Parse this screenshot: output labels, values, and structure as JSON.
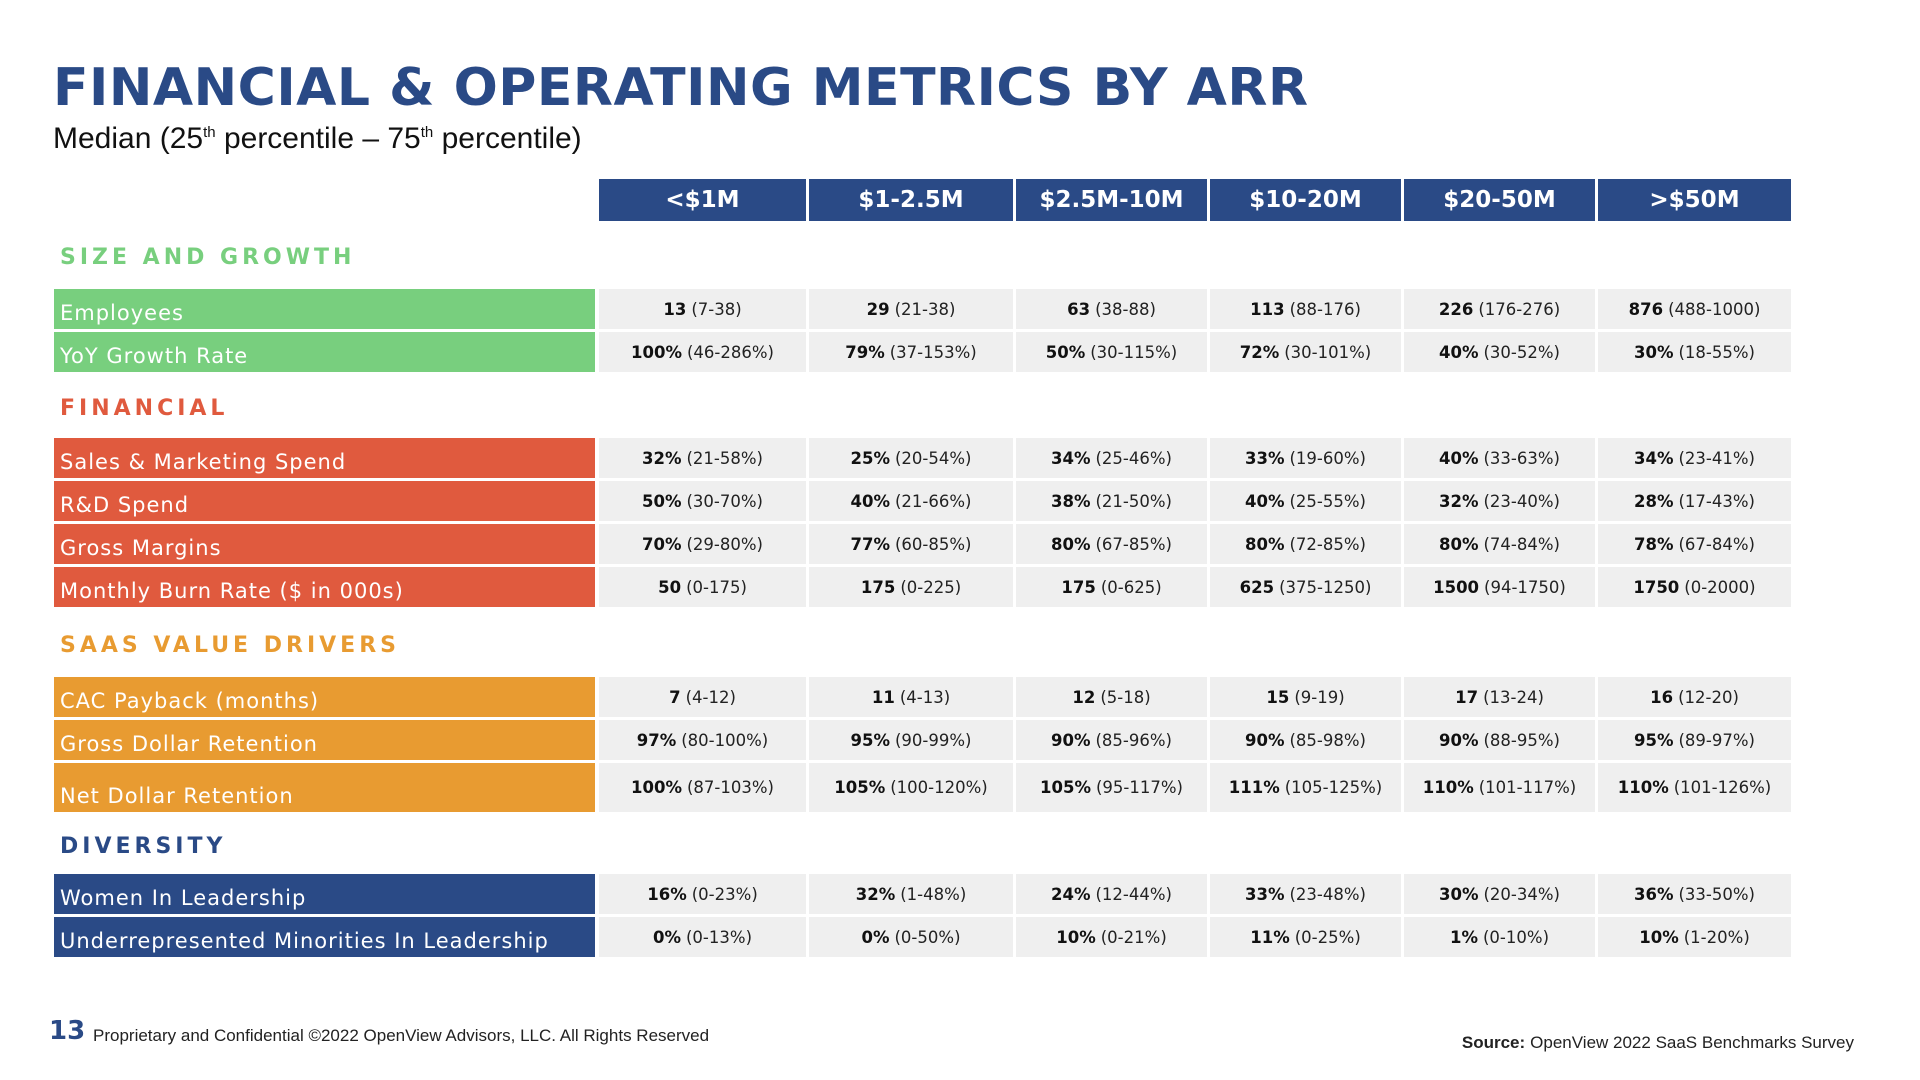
{
  "title": "FINANCIAL & OPERATING METRICS BY ARR",
  "subtitle": {
    "pre": "Median (25",
    "sup1": "th",
    "mid": " percentile – 75",
    "sup2": "th",
    "post": " percentile)"
  },
  "columns": [
    "<$1M",
    "$1-2.5M",
    "$2.5M-10M",
    "$10-20M",
    "$20-50M",
    ">$50M"
  ],
  "colors": {
    "header_blue": "#2a4a86",
    "size_green": "#78cf7e",
    "financial_red": "#e05a3e",
    "saas_orange": "#e89b31",
    "diversity_blue": "#2a4a86",
    "cell_gray": "#efefef"
  },
  "sections": [
    {
      "title": "SIZE AND GROWTH",
      "rows": [
        {
          "label": "Employees",
          "cells": [
            {
              "median": "13",
              "range": "(7-38)"
            },
            {
              "median": "29",
              "range": "(21-38)"
            },
            {
              "median": "63",
              "range": "(38-88)"
            },
            {
              "median": "113",
              "range": "(88-176)"
            },
            {
              "median": "226",
              "range": "(176-276)"
            },
            {
              "median": "876",
              "range": "(488-1000)"
            }
          ]
        },
        {
          "label": "YoY Growth Rate",
          "cells": [
            {
              "median": "100%",
              "range": "(46-286%)"
            },
            {
              "median": "79%",
              "range": "(37-153%)"
            },
            {
              "median": "50%",
              "range": "(30-115%)"
            },
            {
              "median": "72%",
              "range": "(30-101%)"
            },
            {
              "median": "40%",
              "range": "(30-52%)"
            },
            {
              "median": "30%",
              "range": "(18-55%)"
            }
          ]
        }
      ]
    },
    {
      "title": "FINANCIAL",
      "rows": [
        {
          "label": "Sales & Marketing Spend",
          "cells": [
            {
              "median": "32%",
              "range": "(21-58%)"
            },
            {
              "median": "25%",
              "range": "(20-54%)"
            },
            {
              "median": "34%",
              "range": "(25-46%)"
            },
            {
              "median": "33%",
              "range": "(19-60%)"
            },
            {
              "median": "40%",
              "range": "(33-63%)"
            },
            {
              "median": "34%",
              "range": "(23-41%)"
            }
          ]
        },
        {
          "label": "R&D Spend",
          "cells": [
            {
              "median": "50%",
              "range": "(30-70%)"
            },
            {
              "median": "40%",
              "range": "(21-66%)"
            },
            {
              "median": "38%",
              "range": "(21-50%)"
            },
            {
              "median": "40%",
              "range": "(25-55%)"
            },
            {
              "median": "32%",
              "range": "(23-40%)"
            },
            {
              "median": "28%",
              "range": "(17-43%)"
            }
          ]
        },
        {
          "label": "Gross Margins",
          "cells": [
            {
              "median": "70%",
              "range": "(29-80%)"
            },
            {
              "median": "77%",
              "range": "(60-85%)"
            },
            {
              "median": "80%",
              "range": "(67-85%)"
            },
            {
              "median": "80%",
              "range": "(72-85%)"
            },
            {
              "median": "80%",
              "range": "(74-84%)"
            },
            {
              "median": "78%",
              "range": "(67-84%)"
            }
          ]
        },
        {
          "label": "Monthly Burn Rate ($ in 000s)",
          "cells": [
            {
              "median": "50",
              "range": "(0-175)"
            },
            {
              "median": "175",
              "range": "(0-225)"
            },
            {
              "median": "175",
              "range": "(0-625)"
            },
            {
              "median": "625",
              "range": "(375-1250)"
            },
            {
              "median": "1500",
              "range": "(94-1750)"
            },
            {
              "median": "1750",
              "range": "(0-2000)"
            }
          ]
        }
      ]
    },
    {
      "title": "SAAS VALUE DRIVERS",
      "rows": [
        {
          "label": "CAC Payback (months)",
          "cells": [
            {
              "median": "7",
              "range": "(4-12)"
            },
            {
              "median": "11",
              "range": "(4-13)"
            },
            {
              "median": "12",
              "range": "(5-18)"
            },
            {
              "median": "15",
              "range": "(9-19)"
            },
            {
              "median": "17",
              "range": "(13-24)"
            },
            {
              "median": "16",
              "range": "(12-20)"
            }
          ]
        },
        {
          "label": "Gross Dollar Retention",
          "cells": [
            {
              "median": "97%",
              "range": "(80-100%)"
            },
            {
              "median": "95%",
              "range": "(90-99%)"
            },
            {
              "median": "90%",
              "range": "(85-96%)"
            },
            {
              "median": "90%",
              "range": "(85-98%)"
            },
            {
              "median": "90%",
              "range": "(88-95%)"
            },
            {
              "median": "95%",
              "range": "(89-97%)"
            }
          ]
        },
        {
          "label": "Net Dollar Retention",
          "cells": [
            {
              "median": "100%",
              "range": "(87-103%)"
            },
            {
              "median": "105%",
              "range": "(100-120%)"
            },
            {
              "median": "105%",
              "range": "(95-117%)"
            },
            {
              "median": "111%",
              "range": "(105-125%)"
            },
            {
              "median": "110%",
              "range": "(101-117%)"
            },
            {
              "median": "110%",
              "range": "(101-126%)"
            }
          ]
        }
      ]
    },
    {
      "title": "DIVERSITY",
      "rows": [
        {
          "label": "Women In Leadership",
          "cells": [
            {
              "median": "16%",
              "range": "(0-23%)"
            },
            {
              "median": "32%",
              "range": "(1-48%)"
            },
            {
              "median": "24%",
              "range": "(12-44%)"
            },
            {
              "median": "33%",
              "range": "(23-48%)"
            },
            {
              "median": "30%",
              "range": "(20-34%)"
            },
            {
              "median": "36%",
              "range": "(33-50%)"
            }
          ]
        },
        {
          "label": "Underrepresented Minorities In Leadership",
          "cells": [
            {
              "median": "0%",
              "range": "(0-13%)"
            },
            {
              "median": "0%",
              "range": "(0-50%)"
            },
            {
              "median": "10%",
              "range": "(0-21%)"
            },
            {
              "median": "11%",
              "range": "(0-25%)"
            },
            {
              "median": "1%",
              "range": "(0-10%)"
            },
            {
              "median": "10%",
              "range": "(1-20%)"
            }
          ]
        }
      ]
    }
  ],
  "footer": {
    "page_number": "13",
    "copyright": "Proprietary and Confidential ©2022 OpenView Advisors, LLC. All Rights Reserved",
    "source_label": "Source:",
    "source_text": "OpenView 2022 SaaS Benchmarks Survey"
  }
}
